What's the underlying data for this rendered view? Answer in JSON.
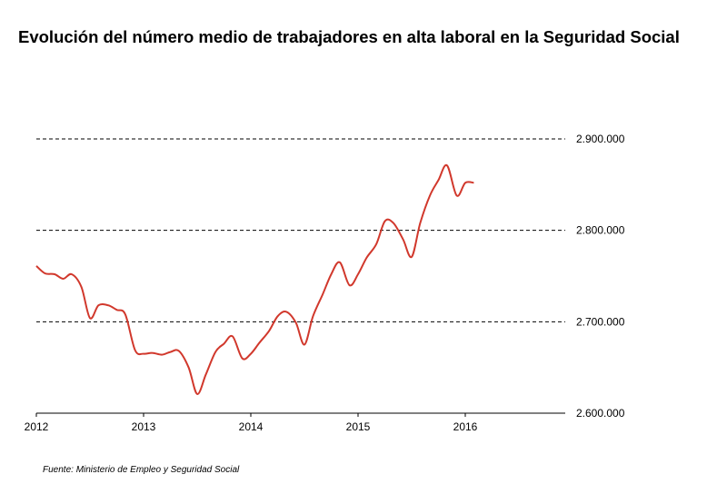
{
  "chart_data": {
    "type": "line",
    "title": "Evolución del número medio de trabajadores en alta laboral en la Seguridad Social",
    "xlabel": "",
    "ylabel": "",
    "x_tick_labels": [
      "2012",
      "2013",
      "2014",
      "2015",
      "2016"
    ],
    "y_tick_labels": [
      "2.600.000",
      "2.700.000",
      "2.800.000",
      "2.900.000"
    ],
    "y_ticks": [
      2600000,
      2700000,
      2800000,
      2900000
    ],
    "ylim": [
      2600000,
      2900000
    ],
    "xlim": [
      2012.0,
      2017.0
    ],
    "grid": "horizontal dashed",
    "legend": "none",
    "series": [
      {
        "color": "#d1382c",
        "x": [
          2012.0,
          2012.08,
          2012.17,
          2012.25,
          2012.33,
          2012.42,
          2012.5,
          2012.58,
          2012.67,
          2012.75,
          2012.83,
          2012.92,
          2013.0,
          2013.08,
          2013.17,
          2013.25,
          2013.33,
          2013.42,
          2013.5,
          2013.58,
          2013.67,
          2013.75,
          2013.83,
          2013.92,
          2014.0,
          2014.08,
          2014.17,
          2014.25,
          2014.33,
          2014.42,
          2014.5,
          2014.58,
          2014.67,
          2014.75,
          2014.83,
          2014.92,
          2015.0,
          2015.08,
          2015.17,
          2015.25,
          2015.33,
          2015.42,
          2015.5,
          2015.58,
          2015.67,
          2015.75,
          2015.83,
          2015.92,
          2016.0,
          2016.08
        ],
        "y": [
          2761000,
          2753000,
          2752000,
          2747000,
          2752000,
          2738000,
          2704000,
          2718000,
          2718000,
          2713000,
          2708000,
          2669000,
          2665000,
          2666000,
          2664000,
          2667000,
          2668000,
          2650000,
          2621000,
          2642000,
          2667000,
          2676000,
          2684000,
          2660000,
          2665000,
          2677000,
          2690000,
          2706000,
          2711000,
          2699000,
          2675000,
          2706000,
          2730000,
          2752000,
          2765000,
          2740000,
          2752000,
          2770000,
          2785000,
          2810000,
          2808000,
          2790000,
          2771000,
          2808000,
          2838000,
          2855000,
          2871000,
          2838000,
          2852000,
          2852000
        ]
      }
    ]
  },
  "source": "Fuente: Ministerio de Empleo y Seguridad Social"
}
